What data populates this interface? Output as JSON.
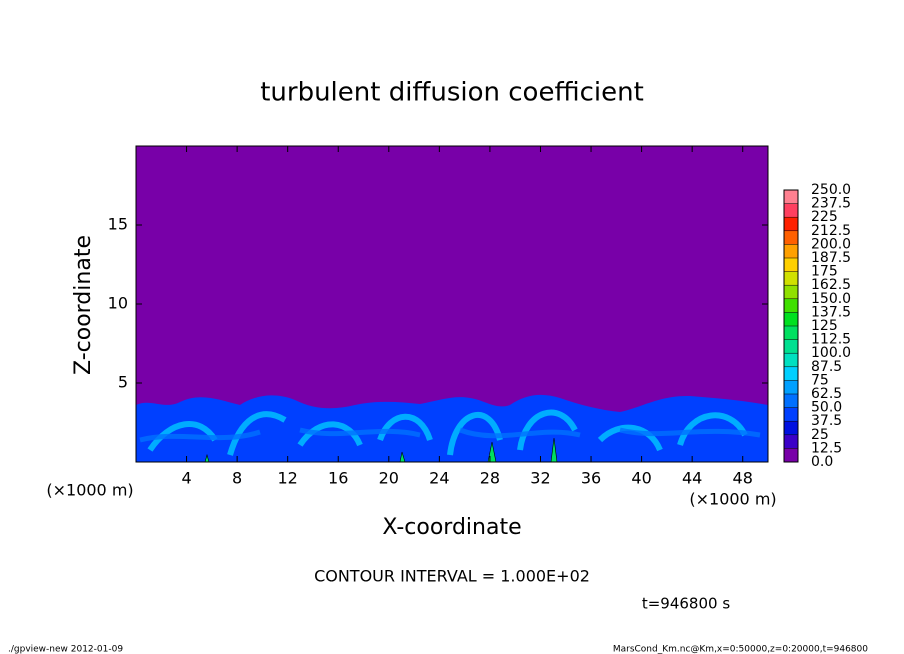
{
  "chart_data": {
    "type": "contour",
    "title": "turbulent diffusion coefficient",
    "x_label": "X-coordinate",
    "y_label": "Z-coordinate",
    "x_unit": "(×1000 m)",
    "y_unit": "(×1000 m)",
    "contour_interval": "CONTOUR INTERVAL = 1.000E+02",
    "time": "t=946800 s",
    "footer_left": "./gpview-new  2012-01-09",
    "footer_right": "MarsCond_Km.nc@Km,x=0:50000,z=0:20000,t=946800",
    "xlim": [
      0,
      50
    ],
    "xticks": [
      4,
      8,
      12,
      16,
      20,
      24,
      28,
      32,
      36,
      40,
      44,
      48
    ],
    "ylim": [
      0,
      20
    ],
    "yticks": [
      5,
      10,
      15
    ],
    "levels": [
      {
        "value": 0,
        "label": "0.0"
      },
      12.5,
      25,
      37.5,
      {
        "value": 50,
        "label": "50.0"
      },
      62.5,
      75,
      87.5,
      {
        "value": 100,
        "label": "100.0"
      },
      112.5,
      125,
      137.5,
      {
        "value": 150,
        "label": "150.0"
      },
      162.5,
      175,
      187.5,
      {
        "value": 200,
        "label": "200.0"
      },
      212.5,
      225,
      237.5,
      {
        "value": 250,
        "label": "250.0"
      }
    ],
    "colors": [
      "#7800a8",
      "#3c00c8",
      "#0010e0",
      "#0040ff",
      "#0070ff",
      "#00a0ff",
      "#00d0ff",
      "#00e0c0",
      "#00e090",
      "#00e060",
      "#00e020",
      "#40e000",
      "#90e000",
      "#d0e000",
      "#ffd000",
      "#ffa000",
      "#ff6000",
      "#ff2000",
      "#ff4060",
      "#ff8090"
    ]
  }
}
